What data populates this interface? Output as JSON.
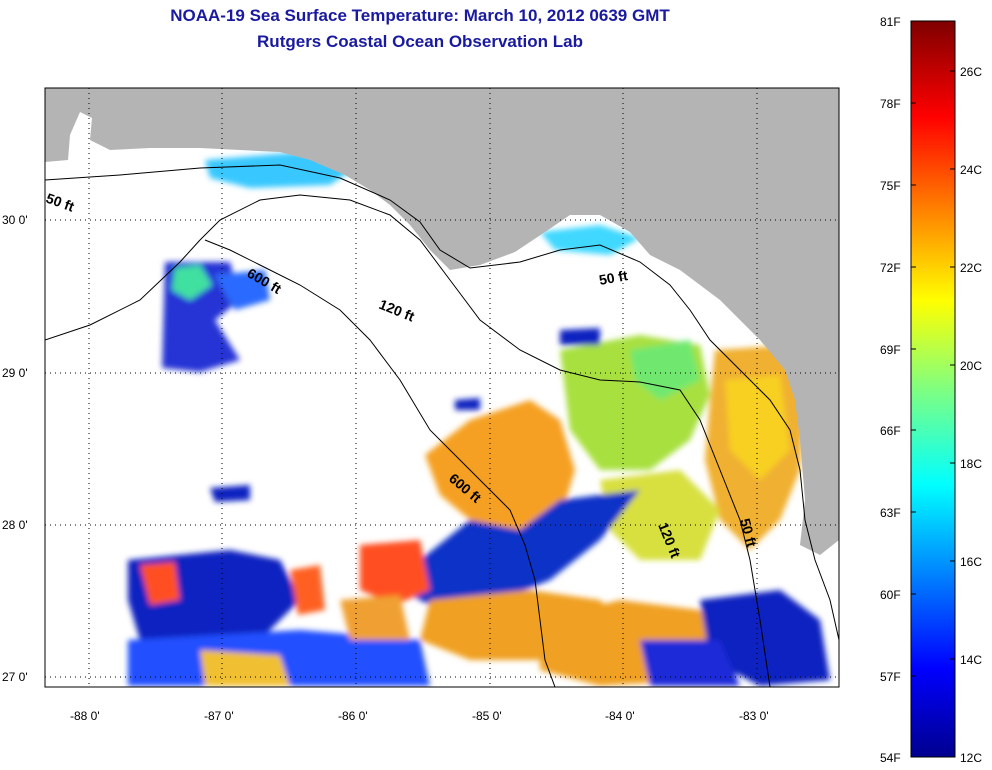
{
  "title": {
    "line1": "NOAA-19 Sea Surface Temperature:  March 10, 2012 0639 GMT",
    "line2": "Rutgers Coastal Ocean Observation Lab"
  },
  "axes": {
    "x_ticks": [
      "-88 0'",
      "-87 0'",
      "-86 0'",
      "-85 0'",
      "-84 0'",
      "-83 0'"
    ],
    "y_ticks": [
      "30 0'",
      "29 0'",
      "28 0'",
      "27 0'"
    ]
  },
  "contours": [
    "50 ft",
    "120 ft",
    "600 ft",
    "600 ft",
    "120 ft",
    "50 ft",
    "50 ft"
  ],
  "colorbar": {
    "f_labels": [
      "81F",
      "78F",
      "75F",
      "72F",
      "69F",
      "66F",
      "63F",
      "60F",
      "57F",
      "54F"
    ],
    "c_labels": [
      "26C",
      "24C",
      "22C",
      "20C",
      "18C",
      "16C",
      "14C",
      "12C"
    ]
  },
  "colors": {
    "land": "#b4b4b4",
    "ocean_no_data": "#ffffff",
    "title": "#1a1aa0",
    "jet_top": "#7f0000",
    "jet_bottom": "#00008f"
  }
}
